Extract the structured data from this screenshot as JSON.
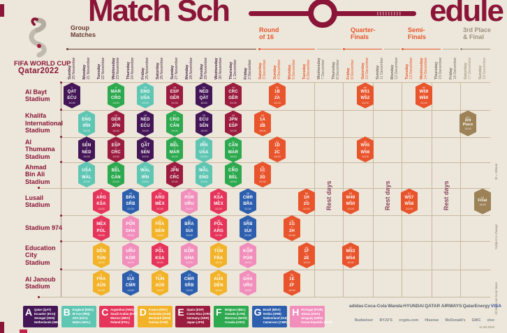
{
  "title": {
    "left": "Match Sch",
    "right": "edule"
  },
  "logo": {
    "wordmark_line1": "FIFA WORLD CUP",
    "wordmark_line2": "Qatar2022"
  },
  "labels": {
    "rest_days": "Rest days",
    "vs": "v"
  },
  "phase_headers": [
    {
      "id": "group",
      "line1": "Group",
      "line2": "Matches"
    },
    {
      "id": "r16",
      "line1": "Round",
      "line2": "of 16"
    },
    {
      "id": "qf",
      "line1": "Quarter-",
      "line2": "Finals"
    },
    {
      "id": "sf",
      "line1": "Semi-",
      "line2": "Finals"
    },
    {
      "id": "final",
      "line1": "3rd Place",
      "line2": "& Final"
    }
  ],
  "side_notes": [
    "W = Winner",
    "Subject to change",
    "All times are local times"
  ],
  "footnote": "11.08.2022",
  "colors": {
    "background": "#ece7da",
    "maroon": "#8a1538",
    "grid_line": "#c9b7a2",
    "rail": "#a98f7d",
    "orange": "#e8542c",
    "tan": "#9d8258",
    "group_header": "#693a35",
    "final_header": "#9d9180",
    "rest_text": "#8a4460",
    "note_text": "#8c8273",
    "date_phase": {
      "group": "#4c2449",
      "r16": "#e8542c",
      "qf": "#e8542c",
      "sf": "#e8542c",
      "rest": "#756c60",
      "final": "#a5977f"
    },
    "groups": {
      "A": "#441657",
      "B": "#5fc6b3",
      "C": "#e6355b",
      "D": "#f2b32a",
      "E": "#9b1c3f",
      "F": "#2da94f",
      "G": "#2d5fae",
      "H": "#f18ebb",
      "KO": "#e8542c",
      "FIN": "#9d8258"
    }
  },
  "chart_data": {
    "type": "table",
    "title": "FIFA World Cup Qatar 2022 Match Schedule",
    "columns": [
      {
        "day": "Sunday",
        "date": "20 November",
        "phase": "group"
      },
      {
        "day": "Monday",
        "date": "21 November",
        "phase": "group"
      },
      {
        "day": "Tuesday",
        "date": "22 November",
        "phase": "group"
      },
      {
        "day": "Wednesday",
        "date": "23 November",
        "phase": "group"
      },
      {
        "day": "Thursday",
        "date": "24 November",
        "phase": "group"
      },
      {
        "day": "Friday",
        "date": "25 November",
        "phase": "group"
      },
      {
        "day": "Saturday",
        "date": "26 November",
        "phase": "group"
      },
      {
        "day": "Sunday",
        "date": "27 November",
        "phase": "group"
      },
      {
        "day": "Monday",
        "date": "28 November",
        "phase": "group"
      },
      {
        "day": "Tuesday",
        "date": "29 November",
        "phase": "group"
      },
      {
        "day": "Wednesday",
        "date": "30 November",
        "phase": "group"
      },
      {
        "day": "Thursday",
        "date": "1 December",
        "phase": "group"
      },
      {
        "day": "Friday",
        "date": "2 December",
        "phase": "group"
      },
      {
        "day": "Saturday",
        "date": "3 December",
        "phase": "r16"
      },
      {
        "day": "Sunday",
        "date": "4 December",
        "phase": "r16"
      },
      {
        "day": "Monday",
        "date": "5 December",
        "phase": "r16"
      },
      {
        "day": "Tuesday",
        "date": "6 December",
        "phase": "r16"
      },
      {
        "day": "Wednesday",
        "date": "7 December",
        "phase": "rest"
      },
      {
        "day": "Thursday",
        "date": "8 December",
        "phase": "rest"
      },
      {
        "day": "Friday",
        "date": "9 December",
        "phase": "qf"
      },
      {
        "day": "Saturday",
        "date": "10 December",
        "phase": "qf"
      },
      {
        "day": "Sunday",
        "date": "11 December",
        "phase": "rest"
      },
      {
        "day": "Monday",
        "date": "12 December",
        "phase": "rest"
      },
      {
        "day": "Tuesday",
        "date": "13 December",
        "phase": "sf"
      },
      {
        "day": "Wednesday",
        "date": "14 December",
        "phase": "sf"
      },
      {
        "day": "Thursday",
        "date": "15 December",
        "phase": "rest"
      },
      {
        "day": "Friday",
        "date": "16 December",
        "phase": "rest"
      },
      {
        "day": "Saturday",
        "date": "17 December",
        "phase": "final"
      },
      {
        "day": "Sunday",
        "date": "18 December",
        "phase": "final"
      }
    ],
    "stadiums": [
      "Al Bayt\nStadium",
      "Khalifa\nInternational\nStadium",
      "Al\nThumama\nStadium",
      "Ahmad\nBin Ali\nStadium",
      "Lusail\nStadium",
      "Stadium 974",
      "Education\nCity\nStadium",
      "Al Janoub\nStadium"
    ],
    "matches": [
      {
        "s": 0,
        "c": 0,
        "g": "A",
        "n": 1,
        "a": "QAT",
        "b": "ECU",
        "t": "19:00"
      },
      {
        "s": 0,
        "c": 3,
        "g": "F",
        "n": 9,
        "a": "MAR",
        "b": "CRO",
        "t": "13:00"
      },
      {
        "s": 0,
        "c": 5,
        "g": "B",
        "n": 20,
        "a": "ENG",
        "b": "USA",
        "t": "22:00"
      },
      {
        "s": 0,
        "c": 7,
        "g": "E",
        "n": 28,
        "a": "ESP",
        "b": "GER",
        "t": "22:00"
      },
      {
        "s": 0,
        "c": 9,
        "g": "A",
        "n": 34,
        "a": "NED",
        "b": "QAT",
        "t": "18:00"
      },
      {
        "s": 0,
        "c": 11,
        "g": "E",
        "n": 44,
        "a": "CRC",
        "b": "GER",
        "t": "22:00"
      },
      {
        "s": 0,
        "c": 14,
        "g": "KO",
        "n": 52,
        "a": "1B",
        "b": "2A",
        "t": "22:00"
      },
      {
        "s": 0,
        "c": 20,
        "g": "KO",
        "n": 60,
        "a": "W51",
        "b": "W52",
        "t": "22:00"
      },
      {
        "s": 0,
        "c": 24,
        "g": "KO",
        "n": 62,
        "a": "W59",
        "b": "W60",
        "t": "22:00"
      },
      {
        "s": 1,
        "c": 1,
        "g": "B",
        "n": 2,
        "a": "ENG",
        "b": "IRN",
        "t": "16:00"
      },
      {
        "s": 1,
        "c": 3,
        "g": "E",
        "n": 10,
        "a": "GER",
        "b": "JPN",
        "t": "16:00"
      },
      {
        "s": 1,
        "c": 5,
        "g": "A",
        "n": 19,
        "a": "NED",
        "b": "ECU",
        "t": "19:00"
      },
      {
        "s": 1,
        "c": 7,
        "g": "F",
        "n": 27,
        "a": "CRO",
        "b": "CAN",
        "t": "19:00"
      },
      {
        "s": 1,
        "c": 9,
        "g": "A",
        "n": 33,
        "a": "ECU",
        "b": "SEN",
        "t": "18:00"
      },
      {
        "s": 1,
        "c": 11,
        "g": "E",
        "n": 43,
        "a": "JPN",
        "b": "ESP",
        "t": "22:00"
      },
      {
        "s": 1,
        "c": 13,
        "g": "KO",
        "n": 49,
        "a": "1A",
        "b": "2B",
        "t": "18:00"
      },
      {
        "s": 1,
        "c": 27,
        "g": "FIN",
        "n": 63,
        "a": "3rd",
        "b": "Place",
        "t": "18:00"
      },
      {
        "s": 2,
        "c": 1,
        "g": "A",
        "n": 3,
        "a": "SEN",
        "b": "NED",
        "t": "19:00"
      },
      {
        "s": 2,
        "c": 3,
        "g": "E",
        "n": 11,
        "a": "ESP",
        "b": "CRC",
        "t": "19:00"
      },
      {
        "s": 2,
        "c": 5,
        "g": "A",
        "n": 18,
        "a": "QAT",
        "b": "SEN",
        "t": "16:00"
      },
      {
        "s": 2,
        "c": 7,
        "g": "F",
        "n": 26,
        "a": "BEL",
        "b": "MAR",
        "t": "16:00"
      },
      {
        "s": 2,
        "c": 9,
        "g": "B",
        "n": 35,
        "a": "IRN",
        "b": "USA",
        "t": "22:00"
      },
      {
        "s": 2,
        "c": 11,
        "g": "F",
        "n": 41,
        "a": "CAN",
        "b": "MAR",
        "t": "18:00"
      },
      {
        "s": 2,
        "c": 14,
        "g": "KO",
        "n": 51,
        "a": "1D",
        "b": "2C",
        "t": "18:00"
      },
      {
        "s": 2,
        "c": 20,
        "g": "KO",
        "n": 59,
        "a": "W55",
        "b": "W56",
        "t": "18:00"
      },
      {
        "s": 3,
        "c": 1,
        "g": "B",
        "n": 4,
        "a": "USA",
        "b": "WAL",
        "t": "22:00"
      },
      {
        "s": 3,
        "c": 3,
        "g": "F",
        "n": 12,
        "a": "BEL",
        "b": "CAN",
        "t": "22:00"
      },
      {
        "s": 3,
        "c": 5,
        "g": "B",
        "n": 17,
        "a": "WAL",
        "b": "IRN",
        "t": "13:00"
      },
      {
        "s": 3,
        "c": 7,
        "g": "E",
        "n": 25,
        "a": "JPN",
        "b": "CRC",
        "t": "13:00"
      },
      {
        "s": 3,
        "c": 9,
        "g": "B",
        "n": 36,
        "a": "WAL",
        "b": "ENG",
        "t": "22:00"
      },
      {
        "s": 3,
        "c": 11,
        "g": "F",
        "n": 42,
        "a": "CRO",
        "b": "BEL",
        "t": "18:00"
      },
      {
        "s": 3,
        "c": 13,
        "g": "KO",
        "n": 50,
        "a": "1C",
        "b": "2D",
        "t": "22:00"
      },
      {
        "s": 4,
        "c": 2,
        "g": "C",
        "n": 5,
        "a": "ARG",
        "b": "KSA",
        "t": "13:00"
      },
      {
        "s": 4,
        "c": 4,
        "g": "G",
        "n": 16,
        "a": "BRA",
        "b": "SRB",
        "t": "22:00"
      },
      {
        "s": 4,
        "c": 6,
        "g": "C",
        "n": 24,
        "a": "ARG",
        "b": "MEX",
        "t": "22:00"
      },
      {
        "s": 4,
        "c": 8,
        "g": "H",
        "n": 32,
        "a": "POR",
        "b": "URU",
        "t": "22:00"
      },
      {
        "s": 4,
        "c": 10,
        "g": "C",
        "n": 40,
        "a": "KSA",
        "b": "MEX",
        "t": "22:00"
      },
      {
        "s": 4,
        "c": 12,
        "g": "G",
        "n": 48,
        "a": "CMR",
        "b": "BRA",
        "t": "22:00"
      },
      {
        "s": 4,
        "c": 16,
        "g": "KO",
        "n": 56,
        "a": "1H",
        "b": "2G",
        "t": "22:00"
      },
      {
        "s": 4,
        "c": 19,
        "g": "KO",
        "n": 58,
        "a": "W49",
        "b": "W50",
        "t": "22:00"
      },
      {
        "s": 4,
        "c": 23,
        "g": "KO",
        "n": 61,
        "a": "W57",
        "b": "W58",
        "t": "22:00"
      },
      {
        "s": 4,
        "c": 28,
        "g": "FIN",
        "n": 64,
        "a": "Final",
        "b": "",
        "t": "18:00"
      },
      {
        "s": 5,
        "c": 2,
        "g": "C",
        "n": 7,
        "a": "MEX",
        "b": "POL",
        "t": "19:00"
      },
      {
        "s": 5,
        "c": 4,
        "g": "H",
        "n": 15,
        "a": "POR",
        "b": "GHA",
        "t": "19:00"
      },
      {
        "s": 5,
        "c": 6,
        "g": "D",
        "n": 23,
        "a": "FRA",
        "b": "DEN",
        "t": "19:00"
      },
      {
        "s": 5,
        "c": 8,
        "g": "G",
        "n": 31,
        "a": "BRA",
        "b": "SUI",
        "t": "19:00"
      },
      {
        "s": 5,
        "c": 10,
        "g": "C",
        "n": 39,
        "a": "POL",
        "b": "ARG",
        "t": "22:00"
      },
      {
        "s": 5,
        "c": 12,
        "g": "G",
        "n": 47,
        "a": "SRB",
        "b": "SUI",
        "t": "22:00"
      },
      {
        "s": 5,
        "c": 15,
        "g": "KO",
        "n": 54,
        "a": "1G",
        "b": "2H",
        "t": "22:00"
      },
      {
        "s": 6,
        "c": 2,
        "g": "D",
        "n": 6,
        "a": "DEN",
        "b": "TUN",
        "t": "16:00"
      },
      {
        "s": 6,
        "c": 4,
        "g": "H",
        "n": 14,
        "a": "URU",
        "b": "KOR",
        "t": "16:00"
      },
      {
        "s": 6,
        "c": 6,
        "g": "C",
        "n": 22,
        "a": "POL",
        "b": "KSA",
        "t": "16:00"
      },
      {
        "s": 6,
        "c": 8,
        "g": "H",
        "n": 30,
        "a": "KOR",
        "b": "GHA",
        "t": "16:00"
      },
      {
        "s": 6,
        "c": 10,
        "g": "D",
        "n": 37,
        "a": "TUN",
        "b": "FRA",
        "t": "18:00"
      },
      {
        "s": 6,
        "c": 12,
        "g": "H",
        "n": 46,
        "a": "KOR",
        "b": "POR",
        "t": "18:00"
      },
      {
        "s": 6,
        "c": 16,
        "g": "KO",
        "n": 55,
        "a": "1F",
        "b": "2E",
        "t": "18:00"
      },
      {
        "s": 6,
        "c": 19,
        "g": "KO",
        "n": 57,
        "a": "W53",
        "b": "W54",
        "t": "18:00"
      },
      {
        "s": 7,
        "c": 2,
        "g": "D",
        "n": 8,
        "a": "FRA",
        "b": "AUS",
        "t": "22:00"
      },
      {
        "s": 7,
        "c": 4,
        "g": "G",
        "n": 13,
        "a": "SUI",
        "b": "CMR",
        "t": "13:00"
      },
      {
        "s": 7,
        "c": 6,
        "g": "D",
        "n": 21,
        "a": "TUN",
        "b": "AUS",
        "t": "13:00"
      },
      {
        "s": 7,
        "c": 8,
        "g": "G",
        "n": 29,
        "a": "CMR",
        "b": "SRB",
        "t": "13:00"
      },
      {
        "s": 7,
        "c": 10,
        "g": "D",
        "n": 38,
        "a": "AUS",
        "b": "DEN",
        "t": "18:00"
      },
      {
        "s": 7,
        "c": 12,
        "g": "H",
        "n": 45,
        "a": "GHA",
        "b": "URU",
        "t": "18:00"
      },
      {
        "s": 7,
        "c": 15,
        "g": "KO",
        "n": 53,
        "a": "1E",
        "b": "2F",
        "t": "18:00"
      }
    ],
    "groups": [
      {
        "letter": "A",
        "teams": [
          "Qatar (QAT)",
          "Ecuador (ECU)",
          "Senegal (SEN)",
          "Netherlands (NED)"
        ]
      },
      {
        "letter": "B",
        "teams": [
          "England (ENG)",
          "IR Iran (IRN)",
          "USA (USA)",
          "Wales (WAL)"
        ]
      },
      {
        "letter": "C",
        "teams": [
          "Argentina (ARG)",
          "Saudi Arabia (KSA)",
          "Mexico (MEX)",
          "Poland (POL)"
        ]
      },
      {
        "letter": "D",
        "teams": [
          "France (FRA)",
          "Australia (AUS)",
          "Denmark (DEN)",
          "Tunisia (TUN)"
        ]
      },
      {
        "letter": "E",
        "teams": [
          "Spain (ESP)",
          "Costa Rica (CRC)",
          "Germany (GER)",
          "Japan (JPN)"
        ]
      },
      {
        "letter": "F",
        "teams": [
          "Belgium (BEL)",
          "Canada (CAN)",
          "Morocco (MAR)",
          "Croatia (CRO)"
        ]
      },
      {
        "letter": "G",
        "teams": [
          "Brazil (BRA)",
          "Serbia (SRB)",
          "Switzerland (SUI)",
          "Cameroon (CMR)"
        ]
      },
      {
        "letter": "H",
        "teams": [
          "Portugal (POR)",
          "Ghana (GHA)",
          "Uruguay (URU)",
          "Korea Republic (KOR)"
        ]
      }
    ]
  },
  "sponsors": {
    "row1": [
      "adidas",
      "Coca-Cola",
      "Wanda",
      "HYUNDAI",
      "QATAR AIRWAYS",
      "QatarEnergy",
      "VISA"
    ],
    "row2": [
      "Budweiser",
      "BYJU'S",
      "crypto.com",
      "Hisense",
      "McDonald's",
      "GWC",
      "vivo"
    ]
  }
}
